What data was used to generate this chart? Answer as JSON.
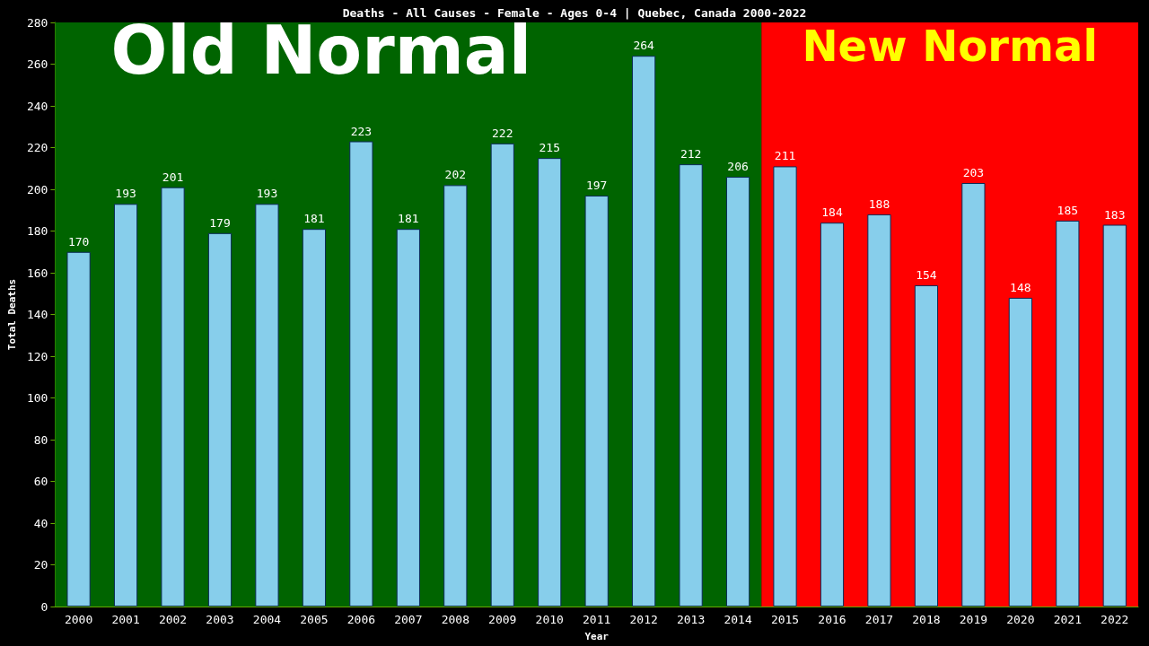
{
  "chart_data": {
    "type": "bar",
    "title": "Deaths - All Causes - Female - Ages 0-4 | Quebec, Canada 2000-2022",
    "xlabel": "Year",
    "ylabel": "Total Deaths",
    "categories": [
      "2000",
      "2001",
      "2002",
      "2003",
      "2004",
      "2005",
      "2006",
      "2007",
      "2008",
      "2009",
      "2010",
      "2011",
      "2012",
      "2013",
      "2014",
      "2015",
      "2016",
      "2017",
      "2018",
      "2019",
      "2020",
      "2021",
      "2022"
    ],
    "values": [
      170,
      193,
      201,
      179,
      193,
      181,
      223,
      181,
      202,
      222,
      215,
      197,
      264,
      212,
      206,
      211,
      184,
      188,
      154,
      203,
      148,
      185,
      183
    ],
    "color": "#87ceeb",
    "data_labels": true,
    "ylim": [
      0,
      280
    ],
    "yticks": [
      0,
      20,
      40,
      60,
      80,
      100,
      120,
      140,
      160,
      180,
      200,
      220,
      240,
      260,
      280
    ],
    "grid": false,
    "bands": [
      {
        "axis": "x",
        "from": "2000",
        "to": "2014",
        "label": "Old Normal",
        "color": "#006400"
      },
      {
        "axis": "x",
        "from": "2015",
        "to": "2022",
        "label": "New Normal",
        "color": "#ff0000"
      }
    ]
  }
}
